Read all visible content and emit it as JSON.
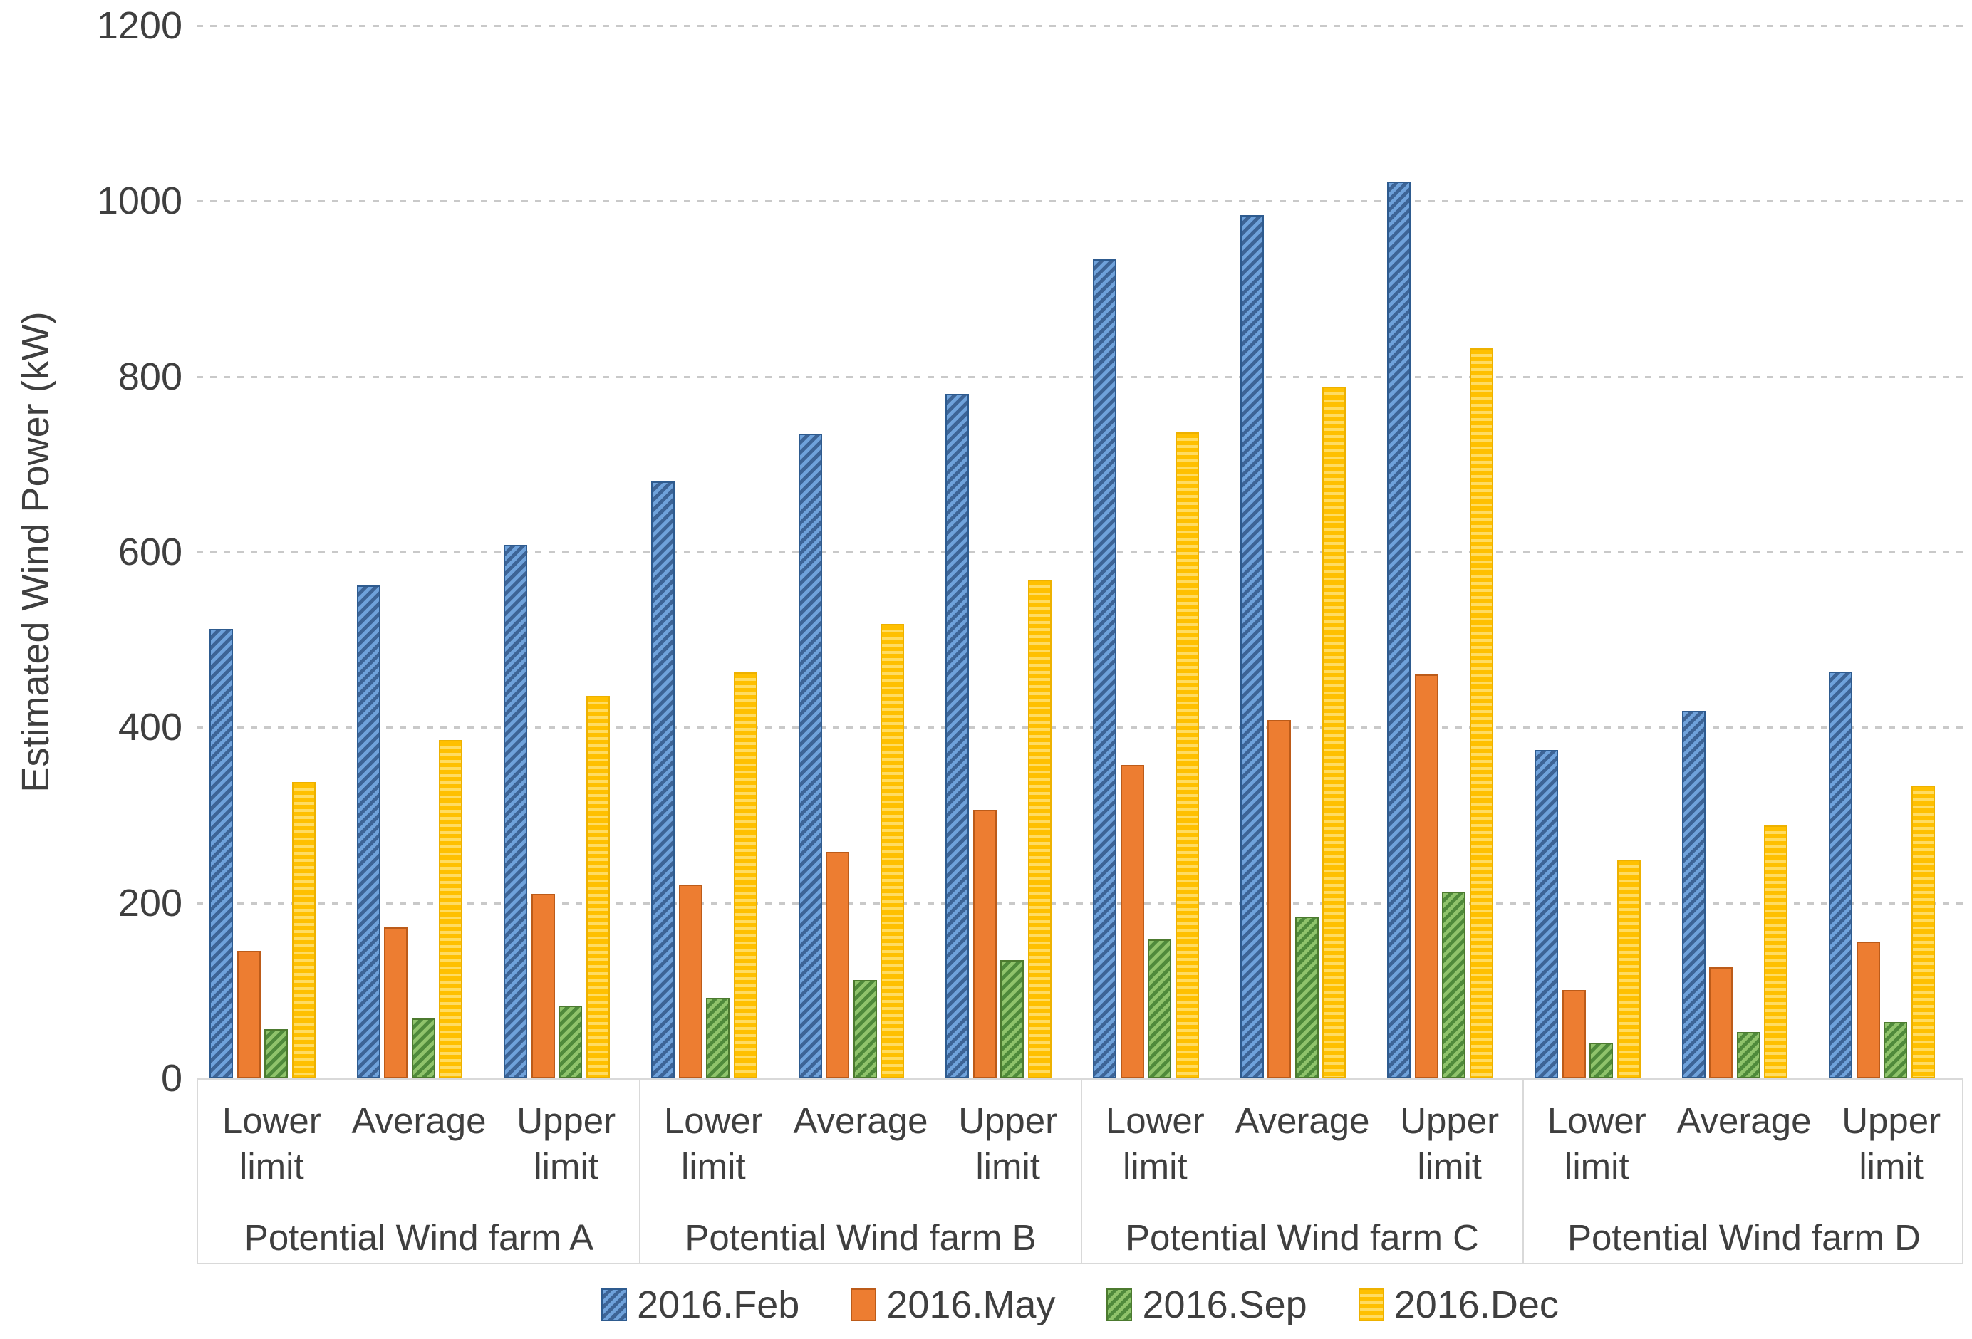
{
  "chart_data": {
    "type": "bar",
    "title": "",
    "ylabel": "Estimated Wind Power (kW)",
    "ylim": [
      0,
      1200
    ],
    "yticks": [
      0,
      200,
      400,
      600,
      800,
      1000,
      1200
    ],
    "grid": "horizontal-dashed",
    "legend_position": "bottom-center",
    "groups": [
      "Potential Wind farm A",
      "Potential Wind farm B",
      "Potential Wind farm C",
      "Potential Wind farm D"
    ],
    "subcategories": [
      "Lower limit",
      "Average",
      "Upper limit"
    ],
    "series": [
      {
        "key": "feb",
        "name": "2016.Feb",
        "pattern": "diagonal-hatch",
        "color": "#4472C4",
        "color_light": "#6FA2DB",
        "color_dark": "#3D6496",
        "border": "#2E5B8F",
        "values": [
          [
            512,
            562,
            608
          ],
          [
            680,
            735,
            780
          ],
          [
            934,
            984,
            1022
          ],
          [
            374,
            419,
            464
          ]
        ]
      },
      {
        "key": "may",
        "name": "2016.May",
        "pattern": "solid",
        "color": "#ED7D31",
        "color_light": "#ED7D31",
        "color_dark": "#ED7D31",
        "border": "#BC5B19",
        "values": [
          [
            145,
            172,
            210
          ],
          [
            221,
            258,
            306
          ],
          [
            357,
            408,
            460
          ],
          [
            101,
            127,
            156
          ]
        ]
      },
      {
        "key": "sep",
        "name": "2016.Sep",
        "pattern": "diagonal-hatch",
        "color": "#70AD47",
        "color_light": "#8FC36B",
        "color_dark": "#4F8A3B",
        "border": "#4C7A2F",
        "values": [
          [
            56,
            68,
            83
          ],
          [
            92,
            112,
            135
          ],
          [
            158,
            184,
            213
          ],
          [
            41,
            53,
            64
          ]
        ]
      },
      {
        "key": "dec",
        "name": "2016.Dec",
        "pattern": "horizontal-dash",
        "color": "#FFC000",
        "color_light": "#FFDC62",
        "color_dark": "#E8AE00",
        "border": "#EDB100",
        "values": [
          [
            338,
            386,
            436
          ],
          [
            463,
            518,
            568
          ],
          [
            736,
            788,
            832
          ],
          [
            249,
            288,
            334
          ]
        ]
      }
    ]
  }
}
